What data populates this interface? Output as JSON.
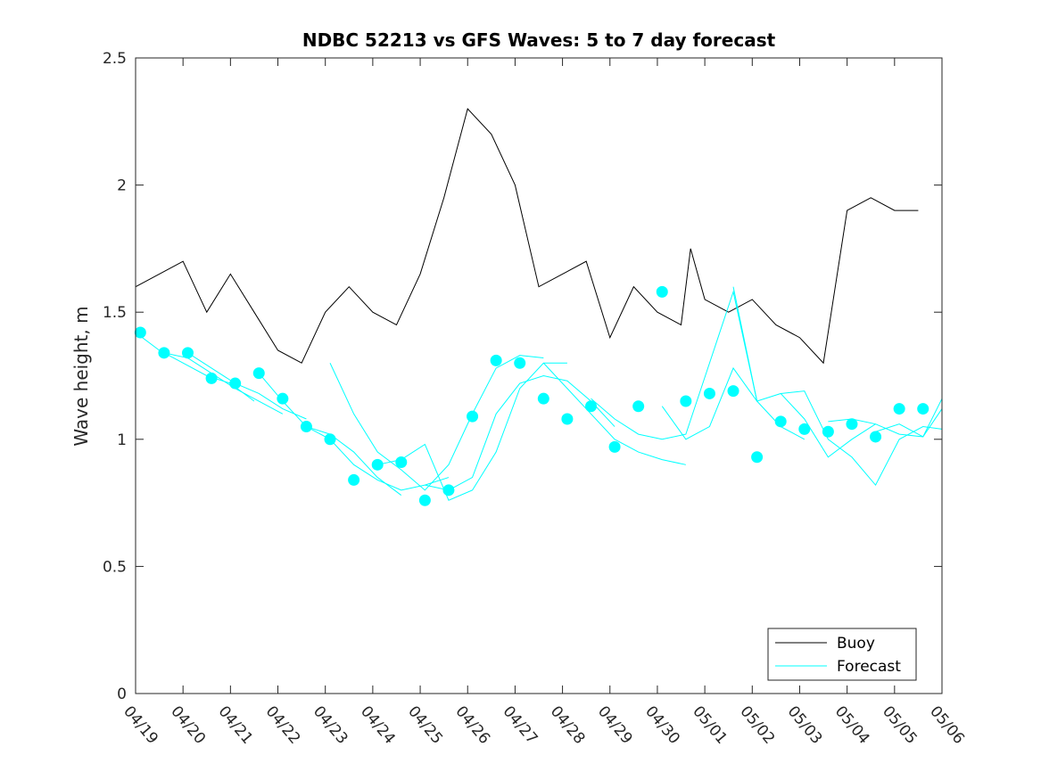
{
  "chart_data": {
    "type": "line",
    "title": "NDBC 52213 vs GFS Waves: 5 to 7 day forecast",
    "xlabel": "",
    "ylabel": "Wave height, m",
    "ylim": [
      0,
      2.5
    ],
    "yticks": [
      "0",
      "0.5",
      "1",
      "1.5",
      "2",
      "2.5"
    ],
    "xlim": [
      "04/19",
      "05/06"
    ],
    "xticks": [
      "04/19",
      "04/20",
      "04/21",
      "04/22",
      "04/23",
      "04/24",
      "04/25",
      "04/26",
      "04/27",
      "04/28",
      "04/29",
      "04/30",
      "05/01",
      "05/02",
      "05/03",
      "05/04",
      "05/05",
      "05/06"
    ],
    "grid": false,
    "legend_position": "bottom-right",
    "colors": {
      "buoy": "#000000",
      "forecast": "#00ffff"
    },
    "series": [
      {
        "name": "Buoy",
        "style": "line",
        "x": [
          0,
          0.5,
          1.0,
          1.5,
          2.0,
          2.5,
          3.0,
          3.5,
          4.0,
          4.5,
          5.0,
          5.5,
          6.0,
          6.5,
          7.0,
          7.5,
          8.0,
          8.5,
          9.0,
          9.5,
          10.0,
          10.5,
          11.0,
          11.5,
          11.7,
          12.0,
          12.5,
          13.0,
          13.5,
          14.0,
          14.5,
          15.0,
          15.5,
          16.0,
          16.5
        ],
        "y": [
          1.6,
          1.65,
          1.7,
          1.5,
          1.65,
          1.5,
          1.35,
          1.3,
          1.5,
          1.6,
          1.5,
          1.45,
          1.65,
          1.95,
          2.3,
          2.2,
          2.0,
          1.6,
          1.65,
          1.7,
          1.4,
          1.6,
          1.5,
          1.45,
          1.75,
          1.55,
          1.5,
          1.55,
          1.45,
          1.4,
          1.3,
          1.9,
          1.95,
          1.9,
          1.9
        ]
      },
      {
        "name": "Forecast",
        "style": "lines",
        "runs": [
          {
            "x": [
              0,
              0.5,
              1.0,
              1.5,
              2.0,
              2.5
            ],
            "y": [
              1.42,
              1.35,
              1.3,
              1.25,
              1.22,
              1.15
            ]
          },
          {
            "x": [
              0.6,
              1.1,
              1.6,
              2.1,
              2.6,
              3.1
            ],
            "y": [
              1.34,
              1.32,
              1.26,
              1.2,
              1.15,
              1.1
            ]
          },
          {
            "x": [
              1.1,
              1.6,
              2.1,
              2.6,
              3.1,
              3.6
            ],
            "y": [
              1.34,
              1.28,
              1.22,
              1.18,
              1.12,
              1.08
            ]
          },
          {
            "x": [
              2.6,
              3.1,
              3.6,
              4.1,
              4.6,
              5.1,
              5.6
            ],
            "y": [
              1.26,
              1.15,
              1.05,
              1.02,
              0.95,
              0.85,
              0.78
            ]
          },
          {
            "x": [
              3.6,
              4.1,
              4.6,
              5.1,
              5.6,
              6.1,
              6.6
            ],
            "y": [
              1.05,
              1.0,
              0.9,
              0.84,
              0.8,
              0.82,
              0.85
            ]
          },
          {
            "x": [
              4.1,
              4.6,
              5.1,
              5.6,
              6.1,
              6.6,
              7.1,
              7.6,
              8.1,
              8.6
            ],
            "y": [
              1.3,
              1.1,
              0.95,
              0.88,
              0.8,
              0.9,
              1.1,
              1.28,
              1.33,
              1.32
            ]
          },
          {
            "x": [
              5.1,
              5.6,
              6.1,
              6.6,
              7.1,
              7.6,
              8.1,
              8.6,
              9.1
            ],
            "y": [
              0.9,
              0.92,
              0.98,
              0.76,
              0.8,
              0.95,
              1.2,
              1.3,
              1.3
            ]
          },
          {
            "x": [
              6.1,
              6.6,
              7.1,
              7.6,
              8.1,
              8.6,
              9.1,
              9.6,
              10.1
            ],
            "y": [
              0.82,
              0.8,
              0.85,
              1.1,
              1.22,
              1.25,
              1.23,
              1.15,
              1.05
            ]
          },
          {
            "x": [
              8.6,
              9.1,
              9.6,
              10.1,
              10.6,
              11.1,
              11.6
            ],
            "y": [
              1.3,
              1.2,
              1.1,
              1.0,
              0.95,
              0.92,
              0.9
            ]
          },
          {
            "x": [
              9.6,
              10.1,
              10.6,
              11.1,
              11.6,
              12.1,
              12.6,
              13.1
            ],
            "y": [
              1.16,
              1.08,
              1.02,
              1.0,
              1.02,
              1.3,
              1.58,
              1.15
            ]
          },
          {
            "x": [
              11.1,
              11.6,
              12.1,
              12.6,
              13.1,
              13.6,
              14.1
            ],
            "y": [
              1.13,
              1.0,
              1.05,
              1.28,
              1.15,
              1.05,
              1.0
            ]
          },
          {
            "x": [
              12.6,
              13.1,
              13.6,
              14.1,
              14.6,
              15.1,
              15.6
            ],
            "y": [
              1.6,
              1.15,
              1.18,
              1.08,
              0.93,
              1.0,
              1.06
            ]
          },
          {
            "x": [
              13.6,
              14.1,
              14.6,
              15.1,
              15.6,
              16.1,
              16.6,
              17.0
            ],
            "y": [
              1.18,
              1.19,
              1.0,
              0.93,
              0.82,
              1.0,
              1.05,
              1.04
            ]
          },
          {
            "x": [
              14.6,
              15.1,
              15.6,
              16.1,
              16.6,
              17.0
            ],
            "y": [
              1.07,
              1.08,
              1.06,
              1.02,
              1.01,
              1.12
            ]
          },
          {
            "x": [
              15.6,
              16.1,
              16.6,
              17.0
            ],
            "y": [
              1.03,
              1.06,
              1.01,
              1.16
            ]
          }
        ],
        "markers": {
          "x": [
            0.1,
            0.6,
            1.1,
            1.6,
            2.1,
            2.6,
            3.1,
            3.6,
            4.1,
            4.6,
            5.1,
            5.6,
            6.1,
            6.6,
            7.1,
            7.6,
            8.1,
            8.6,
            9.1,
            9.6,
            10.1,
            10.6,
            11.1,
            11.6,
            12.1,
            12.6,
            13.1,
            13.6,
            14.1,
            14.6,
            15.1,
            15.6,
            16.1,
            16.6
          ],
          "y": [
            1.42,
            1.34,
            1.34,
            1.24,
            1.22,
            1.26,
            1.16,
            1.05,
            1.0,
            0.84,
            0.9,
            0.91,
            0.76,
            0.8,
            1.09,
            1.31,
            1.3,
            1.16,
            1.08,
            1.13,
            0.97,
            1.13,
            1.58,
            1.15,
            1.18,
            1.19,
            0.93,
            1.07,
            1.04,
            1.03,
            1.06,
            1.01,
            1.12,
            1.12
          ]
        }
      }
    ]
  }
}
